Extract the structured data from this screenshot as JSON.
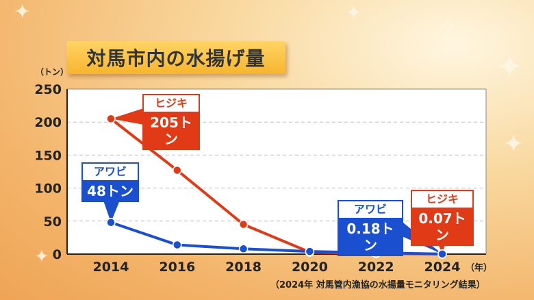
{
  "title": "対馬市内の水揚げ量",
  "unit": "（トン）",
  "x_unit": "（年）",
  "source": "（2024年 対馬管内漁協の水揚量モニタリング結果）",
  "colors": {
    "hijiki": "#e03a17",
    "awabi": "#1a4fd0"
  },
  "callouts": {
    "hijiki_2014": {
      "name": "ヒジキ",
      "value": "205トン"
    },
    "awabi_2014": {
      "name": "アワビ",
      "value": "48トン"
    },
    "awabi_2024": {
      "name": "アワビ",
      "value": "0.18トン"
    },
    "hijiki_2024": {
      "name": "ヒジキ",
      "value": "0.07トン"
    }
  },
  "chart_data": {
    "type": "line",
    "x": [
      2014,
      2016,
      2018,
      2020,
      2022,
      2024
    ],
    "ylim": [
      0,
      250
    ],
    "yticks": [
      0,
      50,
      100,
      150,
      200,
      250
    ],
    "grid": true,
    "series": [
      {
        "name": "ヒジキ",
        "color": "#e03a17",
        "values": [
          205,
          127,
          45,
          3,
          1,
          0.07
        ]
      },
      {
        "name": "アワビ",
        "color": "#1a4fd0",
        "values": [
          48,
          14,
          8,
          4,
          2,
          0.18
        ]
      }
    ]
  }
}
